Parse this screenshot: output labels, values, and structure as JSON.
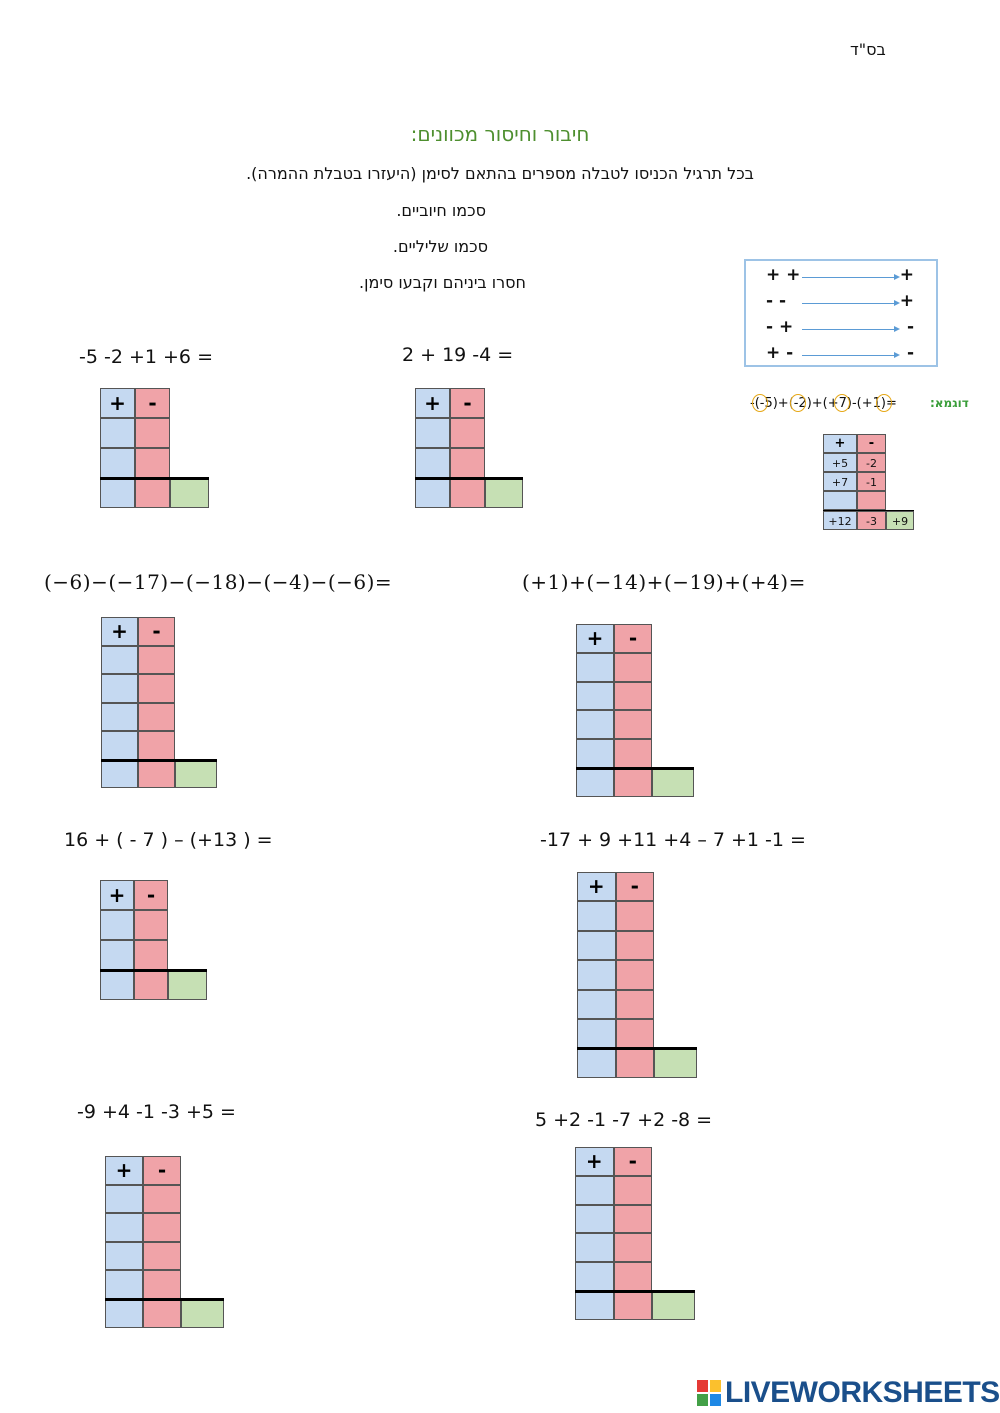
{
  "header": {
    "bsd": "בס\"ד"
  },
  "title": "חיבור וחיסור מכוונים:",
  "instructions": {
    "main": "בכל תרגיל הכניסו לטבלה מספרים בהתאם לסימן (היעזרו בטבלת ההמרה).",
    "sum_positive": "סכמו חיוביים.",
    "sum_negative": "סכמו שליליים.",
    "subtract": "חסרו ביניהם וקבעו סימן."
  },
  "conversion_table": [
    {
      "pair": "+ +",
      "result": "+"
    },
    {
      "pair": "- -",
      "result": "+"
    },
    {
      "pair": "- +",
      "result": "-"
    },
    {
      "pair": "+ -",
      "result": "-"
    }
  ],
  "example": {
    "label": "דוגמא:",
    "expression": "-(-5)+(-2)+(+7)-(+1)=",
    "table": {
      "headers": [
        "+",
        "-"
      ],
      "rows": [
        [
          "+5",
          "-2"
        ],
        [
          "+7",
          "-1"
        ],
        [
          "",
          ""
        ]
      ],
      "totals": {
        "positive": "+12",
        "negative": "-3",
        "result": "+9"
      }
    }
  },
  "table_headers": {
    "plus": "+",
    "minus": "-"
  },
  "problems": [
    {
      "id": "p1",
      "text": "-5 -2 +1 +6 ="
    },
    {
      "id": "p2",
      "text": "2 + 19 -4  ="
    },
    {
      "id": "p3",
      "text": "(−6)−(−17)−(−18)−(−4)−(−6)="
    },
    {
      "id": "p4",
      "text": "(+1)+(−14)+(−19)+(+4)="
    },
    {
      "id": "p5",
      "text": "16 + ( - 7 ) – (+13 ) ="
    },
    {
      "id": "p6",
      "text": "-17 + 9 +11 +4 – 7 +1 -1 ="
    },
    {
      "id": "p7",
      "text": "-9 +4 -1 -3 +5 ="
    },
    {
      "id": "p8",
      "text": "5 +2 -1 -7 +2 -8 ="
    }
  ],
  "footer": {
    "brand": "LIVEWORKSHEETS",
    "brand_colors": [
      "#e53935",
      "#fbc02d",
      "#43a047",
      "#1e88e5"
    ]
  }
}
